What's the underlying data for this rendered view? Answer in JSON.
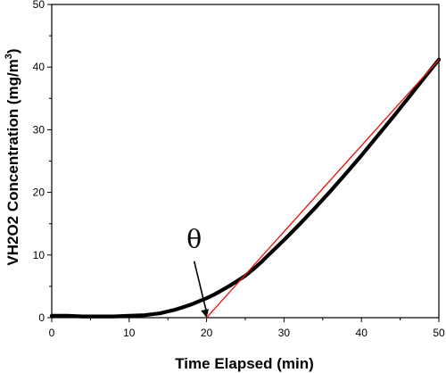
{
  "chart_data": {
    "type": "line",
    "xlabel": "Time Elapsed (min)",
    "ylabel_main": "VH2O2 Concentration (mg/m",
    "ylabel_sup": "3",
    "ylabel_end": ")",
    "xlim": [
      0,
      50
    ],
    "ylim": [
      0,
      50
    ],
    "xticks": [
      0,
      10,
      20,
      30,
      40,
      50
    ],
    "yticks": [
      0,
      10,
      20,
      30,
      40,
      50
    ],
    "grid": false,
    "series": [
      {
        "color": "#000000",
        "style": "thick-noisy",
        "x": [
          0,
          2,
          4,
          6,
          8,
          10,
          12,
          14,
          15,
          16,
          17,
          18,
          19,
          20,
          21,
          22,
          23,
          24,
          25,
          26,
          27,
          28,
          29,
          30,
          32,
          34,
          36,
          38,
          40,
          42,
          44,
          46,
          48,
          50
        ],
        "y": [
          0.3,
          0.3,
          0.2,
          0.2,
          0.2,
          0.3,
          0.4,
          0.7,
          1.0,
          1.3,
          1.7,
          2.1,
          2.6,
          3.1,
          3.7,
          4.4,
          5.1,
          5.9,
          6.7,
          7.7,
          8.8,
          10.0,
          11.2,
          12.4,
          14.9,
          17.5,
          20.2,
          23.0,
          25.9,
          28.9,
          31.9,
          35.0,
          38.1,
          41.2
        ]
      },
      {
        "color": "#e0201c",
        "style": "tangent-line",
        "x": [
          20,
          50
        ],
        "y": [
          0,
          41.2
        ]
      }
    ],
    "annotations": [
      {
        "text": "θ",
        "x": 18.4,
        "y": 11.2
      }
    ],
    "arrow": {
      "from": [
        18.4,
        9.0
      ],
      "to": [
        20,
        0
      ]
    }
  }
}
